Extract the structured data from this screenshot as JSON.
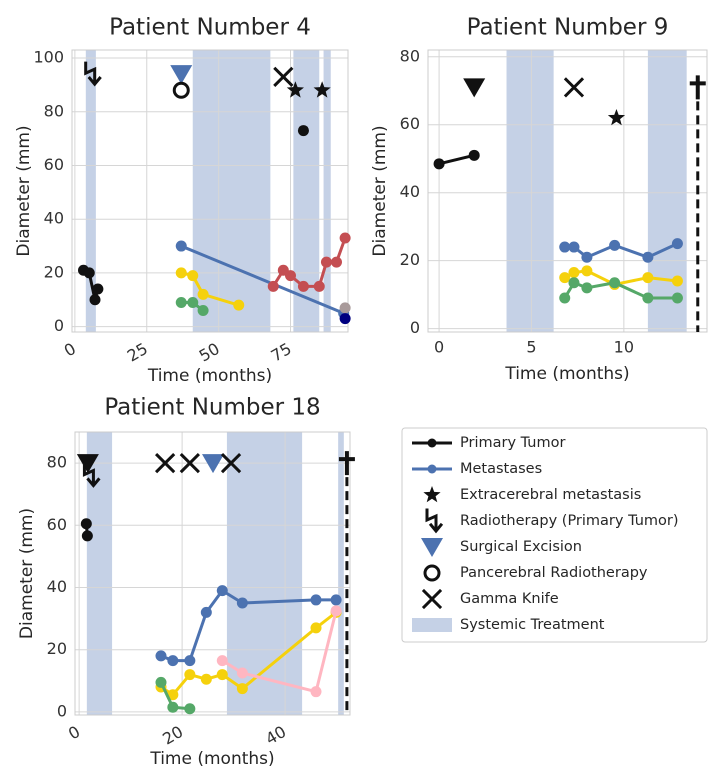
{
  "chart_data": [
    {
      "type": "line",
      "title": "Patient Number 4",
      "xlabel": "Time (months)",
      "ylabel": "Diameter (mm)",
      "xlim": [
        -1,
        95
      ],
      "ylim": [
        -2,
        103
      ],
      "xticks": [
        0,
        25,
        50,
        75
      ],
      "yticks": [
        0,
        20,
        40,
        60,
        80,
        100
      ],
      "xtick_rotation": 30,
      "grid": true,
      "span_color": "#c5d1e6",
      "spans": [
        [
          3.8,
          7.3
        ],
        [
          41,
          68
        ],
        [
          76,
          85
        ],
        [
          86.5,
          89
        ]
      ],
      "series": [
        {
          "color": "#111111",
          "x": [
            3,
            5,
            7,
            8
          ],
          "values": [
            21,
            20,
            10,
            14
          ]
        },
        {
          "color": "#111111",
          "x": [
            79.5
          ],
          "values": [
            73
          ]
        },
        {
          "color": "#4c72b0",
          "x": [
            37,
            93.5
          ],
          "values": [
            30,
            5
          ]
        },
        {
          "color": "#f5d10c",
          "x": [
            37,
            41,
            44.6,
            57
          ],
          "values": [
            20,
            19,
            12,
            8
          ]
        },
        {
          "color": "#55a868",
          "x": [
            37,
            41,
            44.6
          ],
          "values": [
            9,
            9,
            6
          ]
        },
        {
          "color": "#c44e52",
          "x": [
            69,
            72.5,
            75,
            79.5,
            85,
            87.5,
            91,
            94
          ],
          "values": [
            15,
            21,
            19,
            15,
            15,
            24,
            24,
            33
          ]
        },
        {
          "color": "#a89a9a",
          "x": [
            94
          ],
          "values": [
            7
          ]
        },
        {
          "color": "#000080",
          "x": [
            94
          ],
          "values": [
            3
          ]
        }
      ],
      "events": [
        {
          "marker": "radiotherapy",
          "color": "#111111",
          "x": 5.5,
          "y": 94
        },
        {
          "marker": "triangle",
          "color": "#4c72b0",
          "x": 37,
          "y": 94
        },
        {
          "marker": "circle-open",
          "color": "#111111",
          "x": 37,
          "y": 88
        },
        {
          "marker": "x",
          "color": "#111111",
          "x": 72.5,
          "y": 93
        },
        {
          "marker": "star",
          "color": "#111111",
          "x": 76.7,
          "y": 88
        },
        {
          "marker": "star",
          "color": "#111111",
          "x": 86,
          "y": 88
        }
      ]
    },
    {
      "type": "line",
      "title": "Patient Number 9",
      "xlabel": "Time (months)",
      "ylabel": "Diameter (mm)",
      "xlim": [
        -0.6,
        14.5
      ],
      "ylim": [
        -1,
        82
      ],
      "xticks": [
        0,
        5,
        10
      ],
      "yticks": [
        0,
        20,
        40,
        60,
        80
      ],
      "xtick_rotation": 0,
      "grid": true,
      "span_color": "#c5d1e6",
      "spans": [
        [
          3.65,
          6.2
        ],
        [
          11.3,
          13.4
        ]
      ],
      "series": [
        {
          "color": "#111111",
          "x": [
            0,
            1.9
          ],
          "values": [
            48.5,
            51
          ]
        },
        {
          "color": "#4c72b0",
          "x": [
            6.8,
            7.3,
            8,
            9.5,
            11.3,
            12.9
          ],
          "values": [
            24,
            24,
            21,
            24.5,
            21,
            25
          ]
        },
        {
          "color": "#f5d10c",
          "x": [
            6.8,
            7.3,
            8,
            9.5,
            11.3,
            12.9
          ],
          "values": [
            15,
            16.5,
            17,
            13,
            15,
            14
          ]
        },
        {
          "color": "#55a868",
          "x": [
            6.8,
            7.3,
            8,
            9.5,
            11.3,
            12.9
          ],
          "values": [
            9,
            13.5,
            12,
            13.5,
            9,
            9
          ]
        }
      ],
      "events": [
        {
          "marker": "triangle",
          "color": "#111111",
          "x": 1.9,
          "y": 71
        },
        {
          "marker": "x",
          "color": "#111111",
          "x": 7.3,
          "y": 71
        },
        {
          "marker": "star",
          "color": "#111111",
          "x": 9.6,
          "y": 62
        },
        {
          "marker": "dagger",
          "color": "#111111",
          "x": 14,
          "y": 71
        }
      ]
    },
    {
      "type": "line",
      "title": "Patient Number 18",
      "xlabel": "Time (months)",
      "ylabel": "Diameter (mm)",
      "xlim": [
        -0.8,
        52.6
      ],
      "ylim": [
        -1,
        90
      ],
      "xticks": [
        0,
        20,
        40
      ],
      "yticks": [
        0,
        20,
        40,
        60,
        80
      ],
      "xtick_rotation": 30,
      "grid": true,
      "span_color": "#c5d1e6",
      "spans": [
        [
          1.5,
          6.4
        ],
        [
          28.7,
          43.3
        ],
        [
          50.3,
          51.4
        ]
      ],
      "series": [
        {
          "color": "#111111",
          "x": [
            1.4,
            1.6
          ],
          "values": [
            60.5,
            56.6
          ]
        },
        {
          "color": "#4c72b0",
          "x": [
            15.9,
            18.2,
            21.5,
            24.7,
            27.8,
            31.7,
            46,
            49.9
          ],
          "values": [
            18,
            16.5,
            16.5,
            32,
            39,
            35,
            36,
            36
          ]
        },
        {
          "color": "#f5d10c",
          "x": [
            15.9,
            18.2,
            21.5,
            24.7,
            27.8,
            31.7,
            46,
            49.9
          ],
          "values": [
            8,
            5.5,
            12,
            10.5,
            12,
            7.5,
            27,
            32
          ]
        },
        {
          "color": "#55a868",
          "x": [
            15.9,
            18.2,
            21.5
          ],
          "values": [
            9.5,
            1.5,
            1
          ]
        },
        {
          "color": "#ffb6c1",
          "x": [
            27.8,
            31.7,
            46,
            49.9
          ],
          "values": [
            16.5,
            12.5,
            6.5,
            32.5
          ]
        }
      ],
      "events": [
        {
          "marker": "triangle",
          "color": "#111111",
          "x": 1.7,
          "y": 80
        },
        {
          "marker": "radiotherapy",
          "color": "#111111",
          "x": 2,
          "y": 76
        },
        {
          "marker": "x",
          "color": "#111111",
          "x": 16.7,
          "y": 80
        },
        {
          "marker": "x",
          "color": "#111111",
          "x": 21.5,
          "y": 80
        },
        {
          "marker": "triangle",
          "color": "#4c72b0",
          "x": 26,
          "y": 80
        },
        {
          "marker": "x",
          "color": "#111111",
          "x": 29.5,
          "y": 80
        },
        {
          "marker": "dagger",
          "color": "#111111",
          "x": 52,
          "y": 80
        }
      ]
    }
  ],
  "legend": {
    "items": [
      {
        "label": "Primary Tumor",
        "marker": "line-dot",
        "color": "#111111"
      },
      {
        "label": "Metastases",
        "marker": "line-dot",
        "color": "#4c72b0"
      },
      {
        "label": "Extracerebral metastasis",
        "marker": "star",
        "color": "#111111"
      },
      {
        "label": "Radiotherapy (Primary Tumor)",
        "marker": "radiotherapy",
        "color": "#111111"
      },
      {
        "label": "Surgical Excision",
        "marker": "triangle",
        "color": "#4c72b0"
      },
      {
        "label": "Pancerebral Radiotherapy",
        "marker": "circle-open",
        "color": "#111111"
      },
      {
        "label": "Gamma Knife",
        "marker": "x",
        "color": "#111111"
      },
      {
        "label": "Systemic Treatment",
        "marker": "patch",
        "color": "#c5d1e6"
      }
    ]
  }
}
